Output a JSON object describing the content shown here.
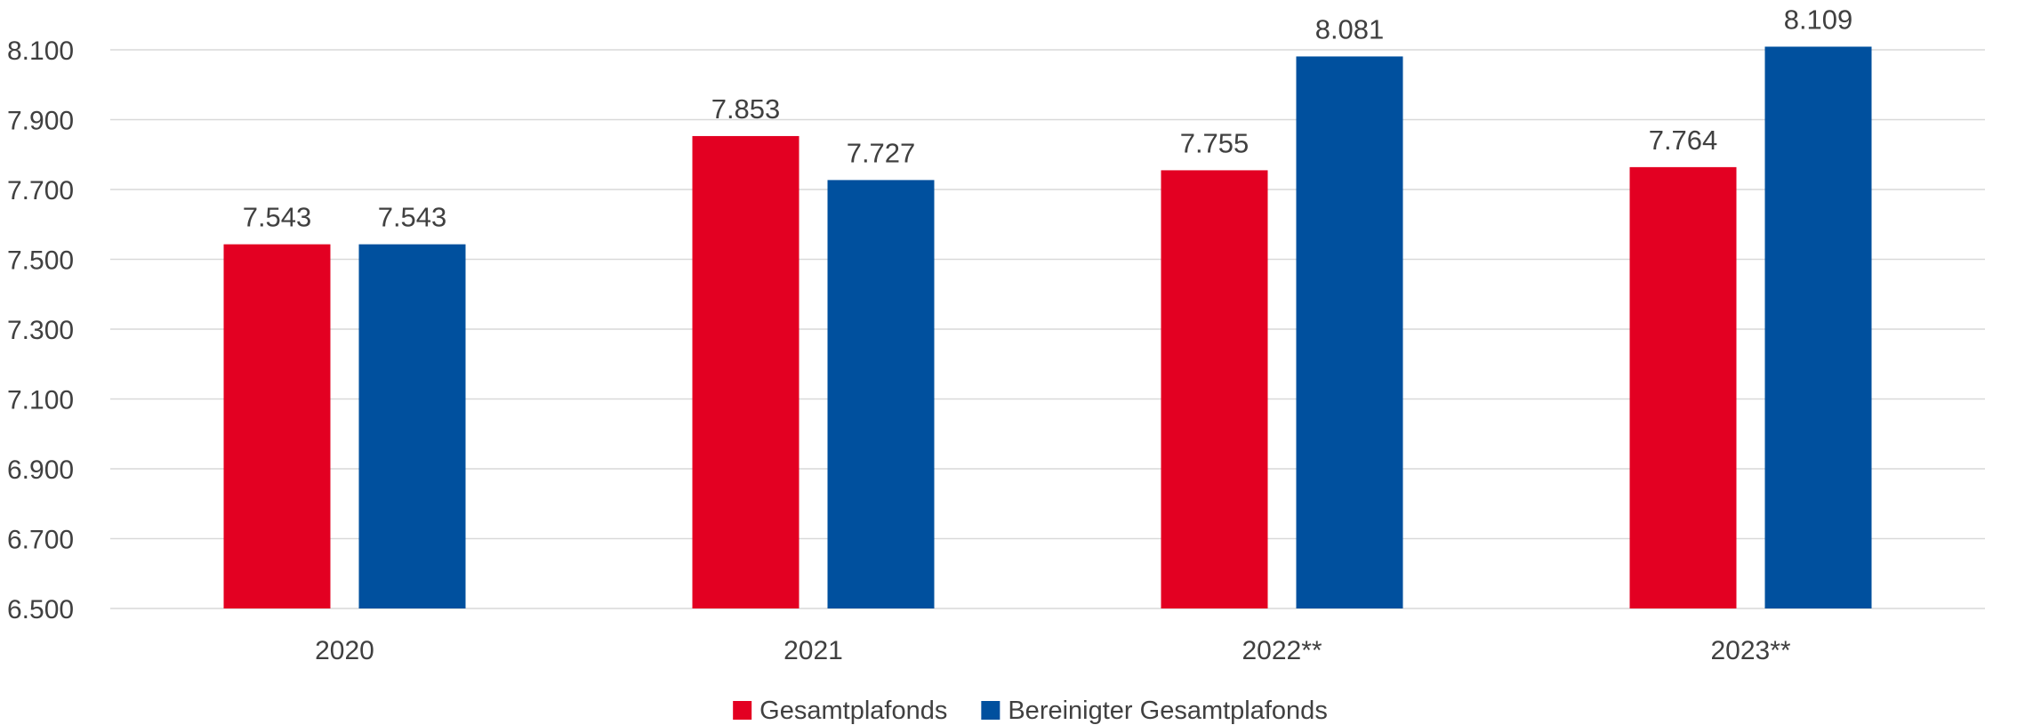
{
  "chart_data": {
    "type": "bar",
    "title": "",
    "xlabel": "",
    "ylabel": "",
    "categories": [
      "2020",
      "2021",
      "2022**",
      "2023**"
    ],
    "series": [
      {
        "name": "Gesamtplafonds",
        "color": "#e30022",
        "values": [
          7543,
          7853,
          7755,
          7764
        ],
        "labels": [
          "7.543",
          "7.853",
          "7.755",
          "7.764"
        ]
      },
      {
        "name": "Bereinigter Gesamtplafonds",
        "color": "#00509e",
        "values": [
          7543,
          7727,
          8081,
          8109
        ],
        "labels": [
          "7.543",
          "7.727",
          "8.081",
          "8.109"
        ]
      }
    ],
    "ylim": [
      6500,
      8200
    ],
    "yticks": [
      6500,
      6700,
      6900,
      7100,
      7300,
      7500,
      7700,
      7900,
      8100
    ],
    "ytick_labels": [
      "6.500",
      "6.700",
      "6.900",
      "7.100",
      "7.300",
      "7.500",
      "7.700",
      "7.900",
      "8.100"
    ],
    "grid": true,
    "legend_position": "bottom-center"
  }
}
